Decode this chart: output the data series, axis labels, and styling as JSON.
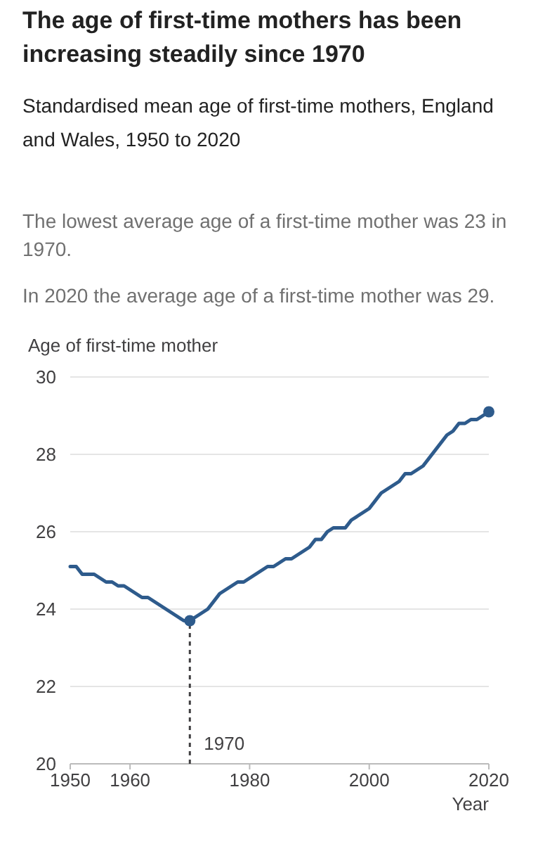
{
  "chart_data": {
    "type": "line",
    "title": "The age of first-time mothers has been increasing steadily since 1970",
    "subtitle": "Standardised mean age of first-time mothers, England and Wales, 1950 to 2020",
    "annotations": [
      "The lowest average age of a first-time mother was 23 in 1970.",
      "In 2020 the average age of a first-time mother was 29."
    ],
    "ylabel": "Age of first-time mother",
    "xlabel": "Year",
    "x": [
      1950,
      1951,
      1952,
      1953,
      1954,
      1955,
      1956,
      1957,
      1958,
      1959,
      1960,
      1961,
      1962,
      1963,
      1964,
      1965,
      1966,
      1967,
      1968,
      1969,
      1970,
      1971,
      1972,
      1973,
      1974,
      1975,
      1976,
      1977,
      1978,
      1979,
      1980,
      1981,
      1982,
      1983,
      1984,
      1985,
      1986,
      1987,
      1988,
      1989,
      1990,
      1991,
      1992,
      1993,
      1994,
      1995,
      1996,
      1997,
      1998,
      1999,
      2000,
      2001,
      2002,
      2003,
      2004,
      2005,
      2006,
      2007,
      2008,
      2009,
      2010,
      2011,
      2012,
      2013,
      2014,
      2015,
      2016,
      2017,
      2018,
      2019,
      2020
    ],
    "series": [
      {
        "color": "#2e5b8c",
        "values": [
          25.1,
          25.1,
          24.9,
          24.9,
          24.9,
          24.8,
          24.7,
          24.7,
          24.6,
          24.6,
          24.5,
          24.4,
          24.3,
          24.3,
          24.2,
          24.1,
          24.0,
          23.9,
          23.8,
          23.7,
          23.7,
          23.8,
          23.9,
          24.0,
          24.2,
          24.4,
          24.5,
          24.6,
          24.7,
          24.7,
          24.8,
          24.9,
          25.0,
          25.1,
          25.1,
          25.2,
          25.3,
          25.3,
          25.4,
          25.5,
          25.6,
          25.8,
          25.8,
          26.0,
          26.1,
          26.1,
          26.1,
          26.3,
          26.4,
          26.5,
          26.6,
          26.8,
          27.0,
          27.1,
          27.2,
          27.3,
          27.5,
          27.5,
          27.6,
          27.7,
          27.9,
          28.1,
          28.3,
          28.5,
          28.6,
          28.8,
          28.8,
          28.9,
          28.9,
          29.0,
          29.1
        ]
      },
      {
        "type": "scatter",
        "color": "#2e5b8c",
        "x": [
          1970,
          2020
        ],
        "values": [
          23.7,
          29.1
        ]
      }
    ],
    "xlim": [
      1950,
      2020
    ],
    "xticks": [
      1950,
      1960,
      1980,
      2000,
      2020
    ],
    "ylim": [
      20,
      30
    ],
    "yticks": [
      20,
      22,
      24,
      26,
      28,
      30
    ],
    "grid": "y",
    "line_style": "solid",
    "ref_lines": [
      {
        "axis": "x",
        "value": 1970,
        "label": "1970",
        "line_style": "dashed",
        "color": "#414042"
      }
    ]
  }
}
